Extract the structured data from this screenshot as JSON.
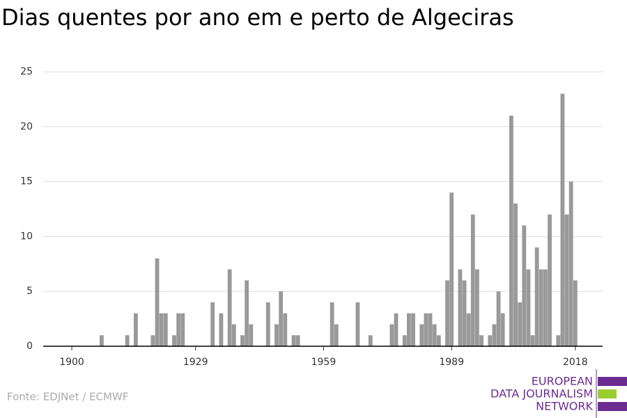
{
  "chart_data": {
    "type": "bar",
    "title": "Dias quentes por ano em e perto de Algeciras",
    "x": [
      1900,
      1901,
      1902,
      1903,
      1904,
      1905,
      1906,
      1907,
      1908,
      1909,
      1910,
      1911,
      1912,
      1913,
      1914,
      1915,
      1916,
      1917,
      1918,
      1919,
      1920,
      1921,
      1922,
      1923,
      1924,
      1925,
      1926,
      1927,
      1928,
      1929,
      1930,
      1931,
      1932,
      1933,
      1934,
      1935,
      1936,
      1937,
      1938,
      1939,
      1940,
      1941,
      1942,
      1943,
      1944,
      1945,
      1946,
      1947,
      1948,
      1949,
      1950,
      1951,
      1952,
      1953,
      1954,
      1955,
      1956,
      1957,
      1958,
      1959,
      1960,
      1961,
      1962,
      1963,
      1964,
      1965,
      1966,
      1967,
      1968,
      1969,
      1970,
      1971,
      1972,
      1973,
      1974,
      1975,
      1976,
      1977,
      1978,
      1979,
      1980,
      1981,
      1982,
      1983,
      1984,
      1985,
      1986,
      1987,
      1988,
      1989,
      1990,
      1991,
      1992,
      1993,
      1994,
      1995,
      1996,
      1997,
      1998,
      1999,
      2000,
      2001,
      2002,
      2003,
      2004,
      2005,
      2006,
      2007,
      2008,
      2009,
      2010,
      2011,
      2012,
      2013,
      2014,
      2015,
      2016,
      2017,
      2018
    ],
    "values": [
      0,
      0,
      0,
      0,
      0,
      0,
      0,
      1,
      0,
      0,
      0,
      0,
      0,
      1,
      0,
      3,
      0,
      0,
      0,
      1,
      8,
      3,
      3,
      0,
      1,
      3,
      3,
      0,
      0,
      0,
      0,
      0,
      0,
      4,
      0,
      3,
      0,
      7,
      2,
      0,
      1,
      6,
      2,
      0,
      0,
      0,
      4,
      0,
      2,
      5,
      3,
      0,
      1,
      1,
      0,
      0,
      0,
      0,
      0,
      0,
      0,
      4,
      2,
      0,
      0,
      0,
      0,
      4,
      0,
      0,
      1,
      0,
      0,
      0,
      0,
      2,
      3,
      0,
      1,
      3,
      3,
      0,
      2,
      3,
      3,
      2,
      1,
      0,
      6,
      14,
      0,
      7,
      6,
      3,
      12,
      7,
      1,
      0,
      1,
      2,
      5,
      3,
      0,
      21,
      13,
      4,
      11,
      7,
      1,
      9,
      7,
      7,
      12,
      0,
      1,
      23,
      12,
      15,
      6
    ],
    "color": "#999999",
    "xlim": [
      1893.3,
      2024.4
    ],
    "xticks": [
      1900,
      1929,
      1959,
      1989,
      2018
    ],
    "ylim": [
      0,
      25
    ],
    "yticks": [
      0,
      5,
      10,
      15,
      20,
      25
    ],
    "grid": true
  },
  "source": "Fonte: EDJNet / ECMWF",
  "logo": {
    "lines": [
      "EUROPEAN",
      "DATA JOURNALISM",
      "NETWORK"
    ]
  }
}
